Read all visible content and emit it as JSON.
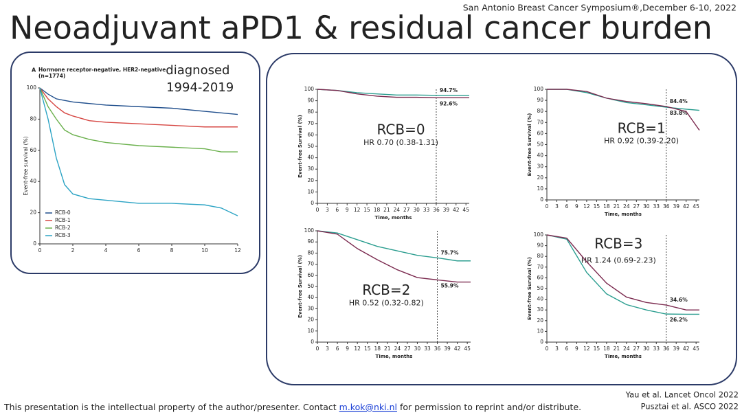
{
  "header": {
    "conference": "San Antonio Breast Cancer Symposium®,December 6-10, 2022",
    "title": "Neoadjuvant aPD1 & residual cancer burden"
  },
  "footer": {
    "before": "This presentation is the intellectual property of the author/presenter. Contact ",
    "link": "m.kok@nki.nl",
    "after": " for permission to reprint and/or distribute."
  },
  "references": [
    "Yau et al. Lancet Oncol 2022",
    "Pusztai et al. ASCO 2022"
  ],
  "chart_data": [
    {
      "type": "line",
      "panel": "A",
      "title": "Hormone receptor-negative, HER2-negative",
      "subtitle": "(n=1774)",
      "annotations": [
        "diagnosed",
        "1994-2019"
      ],
      "y_label": "Event-free survival (%)",
      "x": [
        0,
        0.5,
        1,
        1.5,
        2,
        3,
        4,
        6,
        8,
        10,
        11,
        12
      ],
      "series": [
        {
          "name": "RCB-0",
          "color": "#1f4e8c",
          "values": [
            100,
            96,
            93,
            92,
            91,
            90,
            89,
            88,
            87,
            85,
            84,
            83
          ]
        },
        {
          "name": "RCB-1",
          "color": "#d64541",
          "values": [
            100,
            93,
            88,
            84,
            82,
            79,
            78,
            77,
            76,
            75,
            75,
            75
          ]
        },
        {
          "name": "RCB-2",
          "color": "#6ab04c",
          "values": [
            100,
            88,
            80,
            73,
            70,
            67,
            65,
            63,
            62,
            61,
            59,
            59
          ]
        },
        {
          "name": "RCB-3",
          "color": "#2ba3c4",
          "values": [
            100,
            80,
            55,
            38,
            32,
            29,
            28,
            26,
            26,
            25,
            23,
            18
          ]
        }
      ],
      "xlim": [
        0,
        12
      ],
      "xticks": [
        0,
        2,
        4,
        6,
        8,
        10,
        12
      ],
      "ylim": [
        0,
        100
      ],
      "yticks": [
        0,
        20,
        40,
        60,
        80,
        100
      ],
      "legend": "lower left"
    },
    {
      "type": "line",
      "annotations": [
        "RCB=0",
        "HR 0.70 (0.38-1.31)"
      ],
      "x_label": "Time, months",
      "y_label": "Event-free Survival (%)",
      "x": [
        0,
        6,
        12,
        18,
        24,
        30,
        36,
        42,
        46
      ],
      "vline": 36,
      "series": [
        {
          "color": "#2a9d8f",
          "values": [
            100,
            99,
            97,
            96,
            95,
            95,
            94.7,
            94.7,
            94.7
          ],
          "value_labels": [
            null,
            null,
            null,
            null,
            null,
            null,
            "94.7%",
            null,
            null
          ]
        },
        {
          "color": "#7b2a4f",
          "values": [
            100,
            99,
            96,
            94,
            93,
            93,
            92.6,
            92.6,
            92.6
          ],
          "value_labels": [
            null,
            null,
            null,
            null,
            null,
            null,
            "92.6%",
            null,
            null
          ]
        }
      ],
      "xlim": [
        0,
        46
      ],
      "xticks": [
        0,
        3,
        6,
        9,
        12,
        15,
        18,
        21,
        24,
        27,
        30,
        33,
        36,
        39,
        42,
        45
      ],
      "ylim": [
        0,
        100
      ],
      "yticks": [
        0,
        10,
        20,
        30,
        40,
        50,
        60,
        70,
        80,
        90,
        100
      ]
    },
    {
      "type": "line",
      "annotations": [
        "RCB=1",
        "HR 0.92 (0.39-2.20)"
      ],
      "x_label": "Time, months",
      "y_label": "Event-free Survival (%)",
      "x": [
        0,
        6,
        12,
        18,
        24,
        30,
        36,
        42,
        46
      ],
      "vline": 36,
      "series": [
        {
          "color": "#2a9d8f",
          "values": [
            100,
            100,
            97,
            92,
            88,
            86,
            83.8,
            82,
            81
          ],
          "value_labels": [
            null,
            null,
            null,
            null,
            null,
            null,
            "83.8%",
            null,
            null
          ]
        },
        {
          "color": "#7b2a4f",
          "values": [
            100,
            100,
            98,
            92,
            89,
            87,
            84.4,
            80,
            63
          ],
          "value_labels": [
            null,
            null,
            null,
            null,
            null,
            null,
            "84.4%",
            null,
            null
          ]
        }
      ],
      "xlim": [
        0,
        46
      ],
      "xticks": [
        0,
        3,
        6,
        9,
        12,
        15,
        18,
        21,
        24,
        27,
        30,
        33,
        36,
        39,
        42,
        45
      ],
      "ylim": [
        0,
        100
      ],
      "yticks": [
        0,
        10,
        20,
        30,
        40,
        50,
        60,
        70,
        80,
        90,
        100
      ]
    },
    {
      "type": "line",
      "annotations": [
        "RCB=2",
        "HR 0.52 (0.32-0.82)"
      ],
      "x_label": "Time, months",
      "y_label": "Event-free Survival (%)",
      "x": [
        0,
        6,
        12,
        18,
        24,
        30,
        36,
        42,
        46
      ],
      "vline": 36,
      "series": [
        {
          "color": "#2a9d8f",
          "values": [
            100,
            98,
            92,
            86,
            82,
            78,
            75.7,
            73,
            73
          ],
          "value_labels": [
            null,
            null,
            null,
            null,
            null,
            null,
            "75.7%",
            null,
            null
          ]
        },
        {
          "color": "#7b2a4f",
          "values": [
            100,
            97,
            84,
            74,
            65,
            58,
            55.9,
            54,
            54
          ],
          "value_labels": [
            null,
            null,
            null,
            null,
            null,
            null,
            "55.9%",
            null,
            null
          ]
        }
      ],
      "xlim": [
        0,
        46
      ],
      "xticks": [
        0,
        3,
        6,
        9,
        12,
        15,
        18,
        21,
        24,
        27,
        30,
        33,
        36,
        39,
        42,
        45
      ],
      "ylim": [
        0,
        100
      ],
      "yticks": [
        0,
        10,
        20,
        30,
        40,
        50,
        60,
        70,
        80,
        90,
        100
      ]
    },
    {
      "type": "line",
      "annotations": [
        "RCB=3",
        "HR 1.24 (0.69-2.23)"
      ],
      "x_label": "Time, months",
      "y_label": "Event-free Survival (%)",
      "x": [
        0,
        6,
        12,
        18,
        24,
        30,
        36,
        42,
        46
      ],
      "vline": 36,
      "series": [
        {
          "color": "#2a9d8f",
          "values": [
            100,
            96,
            65,
            45,
            35,
            30,
            26.2,
            26,
            26
          ],
          "value_labels": [
            null,
            null,
            null,
            null,
            null,
            null,
            "26.2%",
            null,
            null
          ]
        },
        {
          "color": "#7b2a4f",
          "values": [
            100,
            97,
            75,
            55,
            42,
            37,
            34.6,
            30,
            30
          ],
          "value_labels": [
            null,
            null,
            null,
            null,
            null,
            null,
            "34.6%",
            null,
            null
          ]
        }
      ],
      "xlim": [
        0,
        46
      ],
      "xticks": [
        0,
        3,
        6,
        9,
        12,
        15,
        18,
        21,
        24,
        27,
        30,
        33,
        36,
        39,
        42,
        45
      ],
      "ylim": [
        0,
        100
      ],
      "yticks": [
        0,
        10,
        20,
        30,
        40,
        50,
        60,
        70,
        80,
        90,
        100
      ]
    }
  ]
}
